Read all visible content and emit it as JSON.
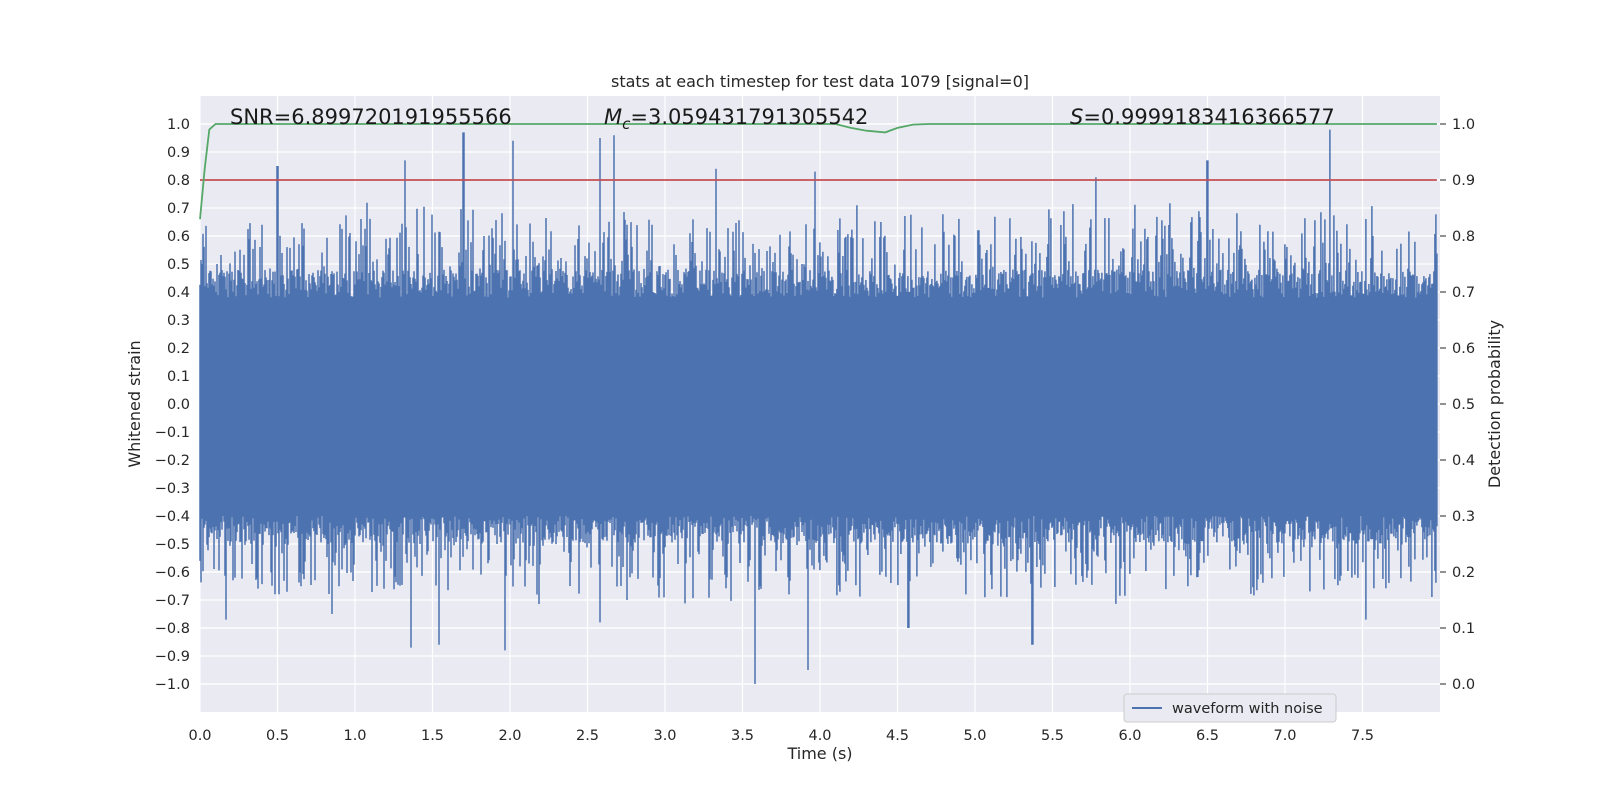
{
  "chart_data": {
    "type": "line",
    "title": "stats at each timestep for test data 1079 [signal=0]",
    "xlabel": "Time (s)",
    "ylabel": "Whitened strain",
    "y2label": "Detection probability",
    "xlim": [
      0.0,
      8.0
    ],
    "ylim": [
      -1.1,
      1.1
    ],
    "y2lim": [
      -0.05,
      1.05
    ],
    "xticks": [
      "0.0",
      "0.5",
      "1.0",
      "1.5",
      "2.0",
      "2.5",
      "3.0",
      "3.5",
      "4.0",
      "4.5",
      "5.0",
      "5.5",
      "6.0",
      "6.5",
      "7.0",
      "7.5"
    ],
    "yticks": [
      "−1.0",
      "−0.9",
      "−0.8",
      "−0.7",
      "−0.6",
      "−0.5",
      "−0.4",
      "−0.3",
      "−0.2",
      "−0.1",
      "0.0",
      "0.1",
      "0.2",
      "0.3",
      "0.4",
      "0.5",
      "0.6",
      "0.7",
      "0.8",
      "0.9",
      "1.0"
    ],
    "y2ticks": [
      "0.0",
      "0.1",
      "0.2",
      "0.3",
      "0.4",
      "0.5",
      "0.6",
      "0.7",
      "0.8",
      "0.9",
      "1.0"
    ],
    "grid": true,
    "legend": {
      "entries": [
        "waveform with noise"
      ],
      "placement": "lower-right"
    },
    "annotations": {
      "snr": "SNR=6.899720191955566",
      "mc_symbol": "M",
      "mc_subscript": "c",
      "mc_value": "=3.059431791305542",
      "s_symbol": "S",
      "s_value": "=0.9999183416366577"
    },
    "series": [
      {
        "name": "waveform with noise",
        "axis": "left",
        "color": "#4c72b0",
        "kind": "noise",
        "t_range": [
          0.0,
          7.98
        ],
        "typical_envelope": [
          -0.4,
          0.38
        ],
        "max_peaks": [
          {
            "t": 0.5,
            "v": 0.85
          },
          {
            "t": 1.32,
            "v": 0.87
          },
          {
            "t": 1.7,
            "v": 0.97
          },
          {
            "t": 2.02,
            "v": 0.94
          },
          {
            "t": 2.58,
            "v": 0.95
          },
          {
            "t": 2.67,
            "v": 0.96
          },
          {
            "t": 3.33,
            "v": 0.84
          },
          {
            "t": 3.97,
            "v": 0.83
          },
          {
            "t": 5.78,
            "v": 0.81
          },
          {
            "t": 6.5,
            "v": 0.87
          },
          {
            "t": 7.29,
            "v": 0.98
          }
        ],
        "min_peaks": [
          {
            "t": 0.17,
            "v": -0.77
          },
          {
            "t": 0.85,
            "v": -0.75
          },
          {
            "t": 1.36,
            "v": -0.87
          },
          {
            "t": 1.54,
            "v": -0.86
          },
          {
            "t": 1.97,
            "v": -0.88
          },
          {
            "t": 2.58,
            "v": -0.78
          },
          {
            "t": 3.58,
            "v": -1.0
          },
          {
            "t": 3.92,
            "v": -0.95
          },
          {
            "t": 4.57,
            "v": -0.8
          },
          {
            "t": 5.37,
            "v": -0.86
          },
          {
            "t": 7.52,
            "v": -0.77
          }
        ]
      },
      {
        "name": "detection probability",
        "axis": "right",
        "color": "#55a868",
        "x": [
          0.0,
          0.03,
          0.06,
          0.1,
          0.2,
          4.1,
          4.2,
          4.3,
          4.42,
          4.5,
          4.6,
          4.7,
          7.98
        ],
        "y": [
          0.83,
          0.92,
          0.99,
          1.0,
          1.0,
          1.0,
          0.993,
          0.988,
          0.985,
          0.993,
          0.999,
          1.0,
          1.0
        ]
      },
      {
        "name": "threshold",
        "axis": "right",
        "color": "#c44e52",
        "x": [
          0.0,
          7.98
        ],
        "y": [
          0.9,
          0.9
        ]
      }
    ]
  }
}
